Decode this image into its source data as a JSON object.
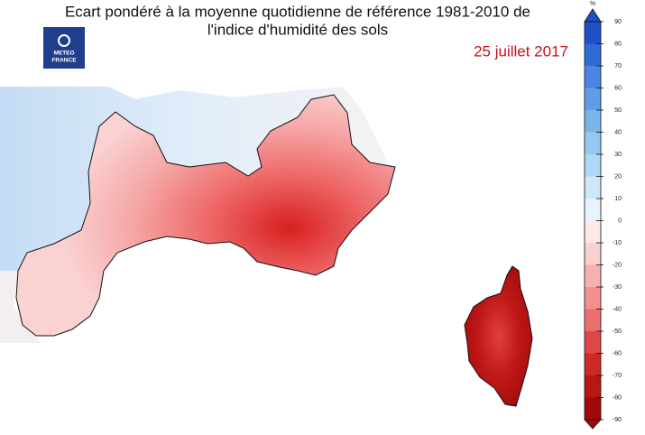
{
  "header": {
    "title_line1": "Ecart pondéré à la moyenne quotidienne de référence 1981-2010 de",
    "title_line2": "l'indice d'humidité des sols",
    "date": "25 juillet 2017",
    "logo_line1": "METEO",
    "logo_line2": "FRANCE"
  },
  "colorbar": {
    "unit": "%",
    "lim": [
      -90,
      90
    ],
    "ticks": [
      90,
      80,
      70,
      60,
      50,
      40,
      30,
      20,
      10,
      0,
      -10,
      -20,
      -30,
      -40,
      -50,
      -60,
      -70,
      -80,
      -90
    ],
    "colors": [
      "#1f4fc8",
      "#2f6ad8",
      "#4a86e0",
      "#5f9ee6",
      "#7ab6ec",
      "#93c8f0",
      "#b0d8f4",
      "#cde6f8",
      "#e8f2fc",
      "#fde8e8",
      "#fbd0d0",
      "#f7b0b0",
      "#f29090",
      "#ec6e6e",
      "#e04848",
      "#d02828",
      "#bb1515",
      "#a00a0a"
    ]
  }
}
